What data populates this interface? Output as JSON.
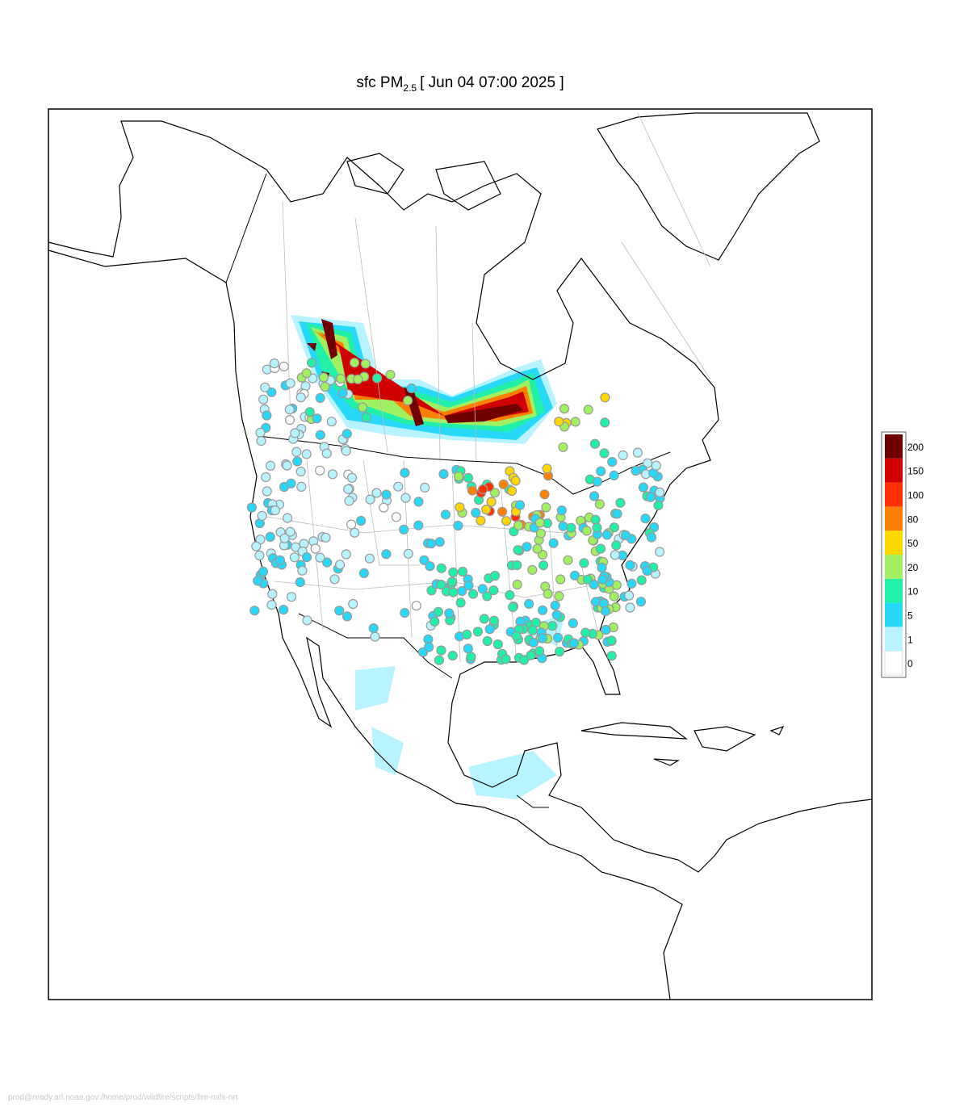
{
  "title": {
    "prefix": "sfc PM",
    "subscript": "2.5",
    "suffix": "[ Jun 04 07:00 2025 ]"
  },
  "legend": {
    "levels": [
      0,
      1,
      5,
      10,
      20,
      50,
      80,
      100,
      150,
      200
    ],
    "colors": [
      "#ffffff",
      "#b8f4ff",
      "#28d8f8",
      "#20f0a8",
      "#a0f060",
      "#ffd800",
      "#ff8000",
      "#ff3000",
      "#d00000",
      "#700000"
    ]
  },
  "footer": "prod@ready.arl.noaa.gov:/home/prod/wildfire/scripts/fire-nsfs-nrt"
}
